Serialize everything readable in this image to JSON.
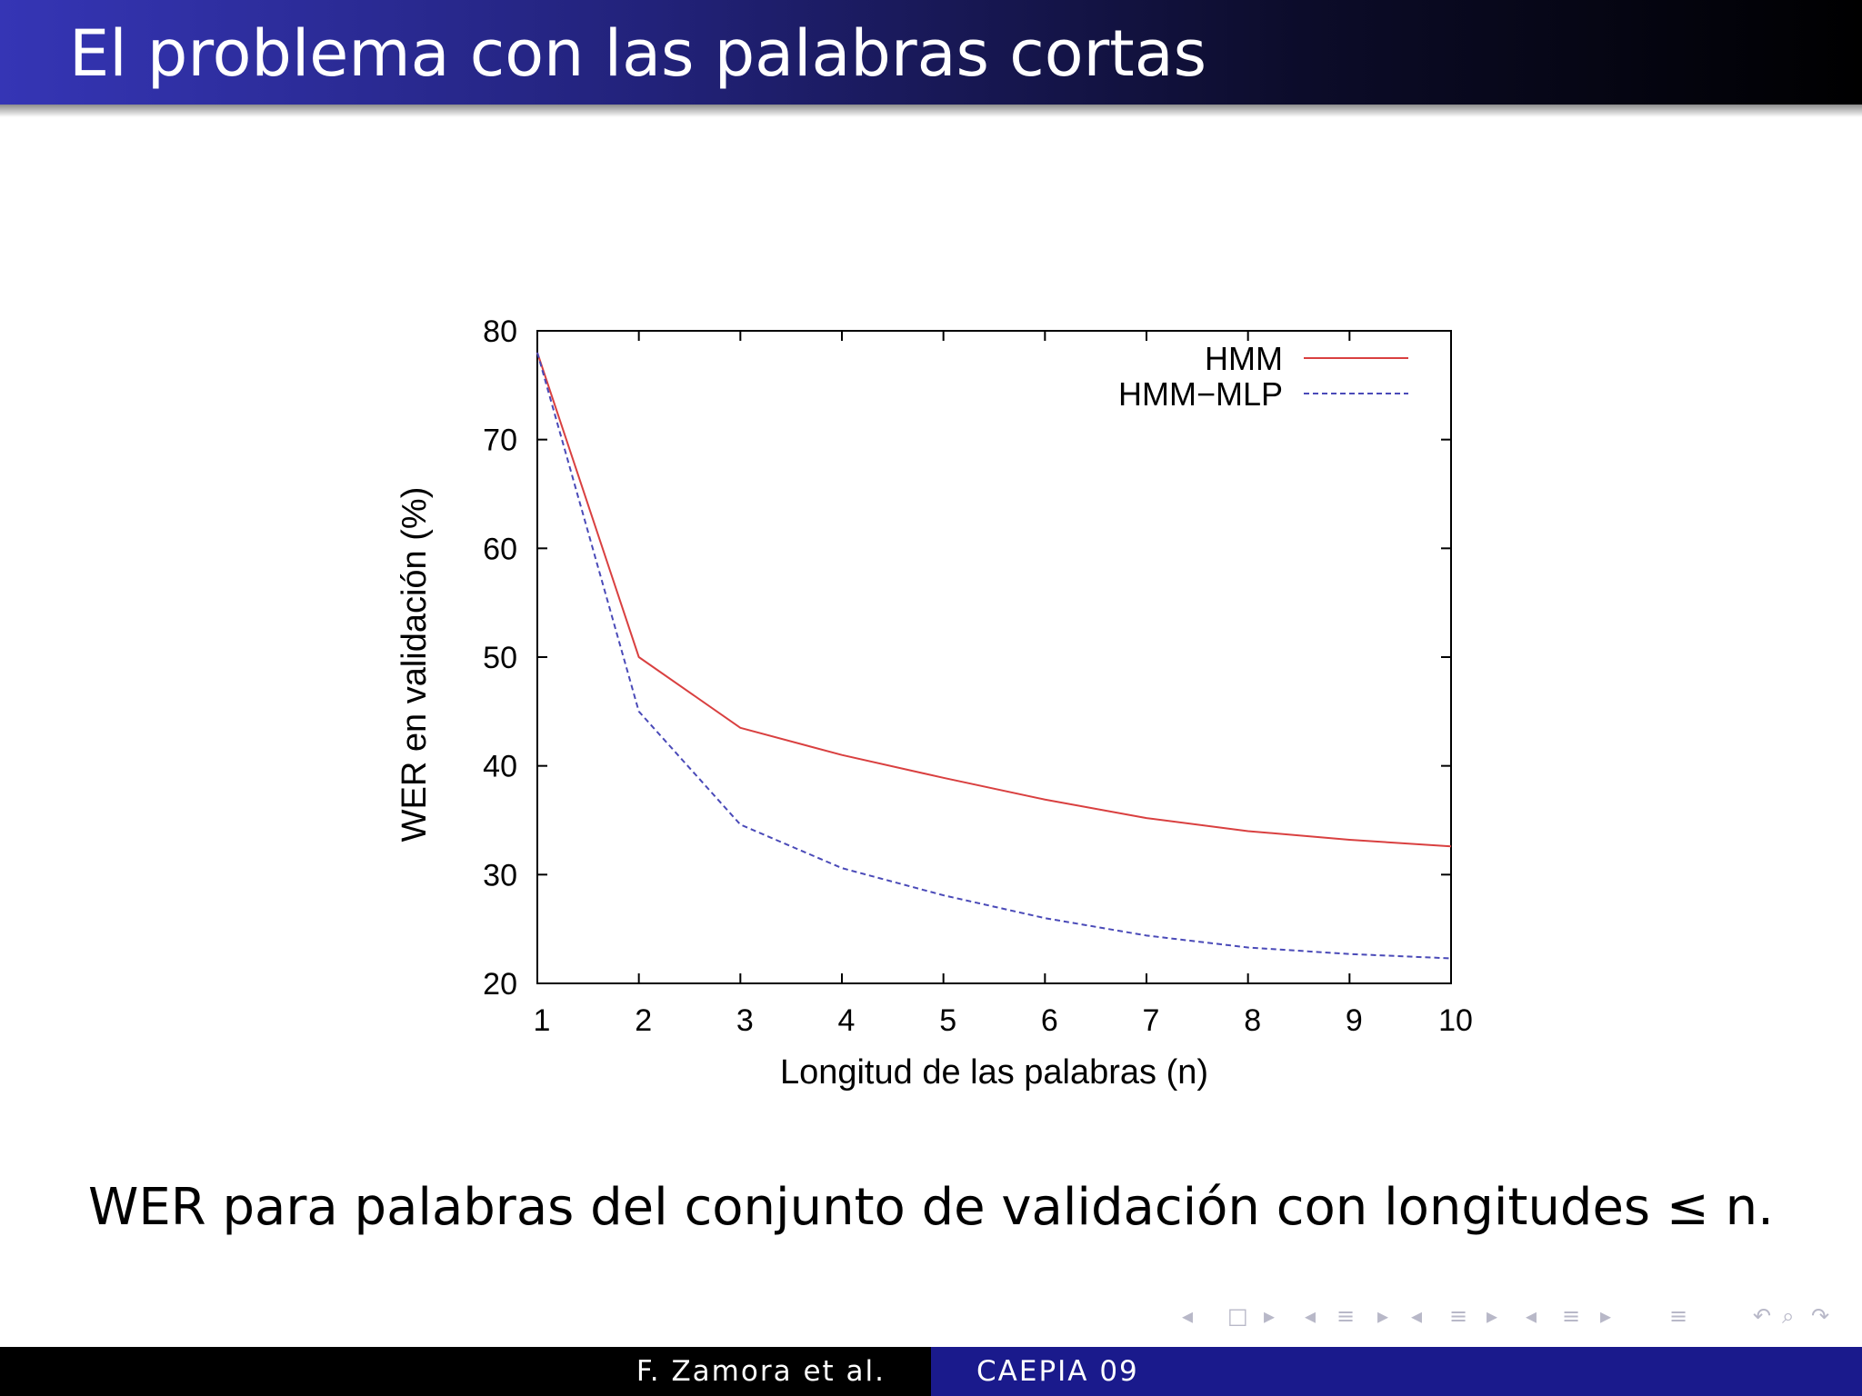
{
  "slide": {
    "title": "El problema con las palabras cortas",
    "caption": "WER para palabras del conjunto de validación con longitudes ≤ n.",
    "footer_author": "F. Zamora et al.",
    "footer_conference": "CAEPIA 09",
    "title_bar_color": "#2c2ca0",
    "footer_right_color": "#1a1a8c"
  },
  "navigation": {
    "icons": [
      "nav-prev-icon",
      "frame-icon",
      "nav-next-icon",
      "nav-prev-icon",
      "subsection-icon",
      "nav-next-icon",
      "nav-prev-icon",
      "section-icon",
      "nav-next-icon",
      "nav-prev-icon",
      "section-icon",
      "nav-next-icon",
      "align-icon",
      "undo-icon",
      "search-icon",
      "redo-icon"
    ]
  },
  "chart_data": {
    "type": "line",
    "title": "",
    "xlabel": "Longitud de las palabras (n)",
    "ylabel": "WER en validación (%)",
    "x": [
      1,
      2,
      3,
      4,
      5,
      6,
      7,
      8,
      9,
      10
    ],
    "xlim": [
      1,
      10
    ],
    "ylim": [
      20,
      80
    ],
    "xticks": [
      "1",
      "2",
      "3",
      "4",
      "5",
      "6",
      "7",
      "8",
      "9",
      "10"
    ],
    "yticks": [
      "20",
      "30",
      "40",
      "50",
      "60",
      "70",
      "80"
    ],
    "grid": false,
    "legend_position": "top-right",
    "series": [
      {
        "name": "HMM",
        "values": [
          78,
          50,
          43.5,
          41,
          38.9,
          36.9,
          35.2,
          34,
          33.2,
          32.6
        ],
        "color": "#d94040",
        "dash": "solid"
      },
      {
        "name": "HMM−MLP",
        "values": [
          78,
          45,
          34.6,
          30.6,
          28.1,
          26,
          24.4,
          23.3,
          22.7,
          22.3
        ],
        "color": "#4a4ab8",
        "dash": "dashed"
      }
    ]
  }
}
